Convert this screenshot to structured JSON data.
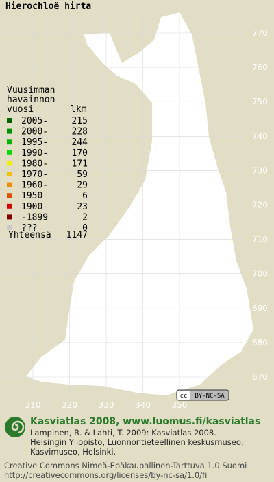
{
  "title": "Hierochloë hirta",
  "legend": {
    "heading": [
      "Vuusimman",
      "havainnon",
      "vuosi"
    ],
    "count_heading": "lkm",
    "rows": [
      {
        "label": "2005-",
        "count": 215,
        "color": "#006400"
      },
      {
        "label": "2000-",
        "count": 228,
        "color": "#009000"
      },
      {
        "label": "1995-",
        "count": 244,
        "color": "#00b400"
      },
      {
        "label": "1990-",
        "count": 170,
        "color": "#00dc00"
      },
      {
        "label": "1980-",
        "count": 171,
        "color": "#f0f000"
      },
      {
        "label": "1970-",
        "count": 59,
        "color": "#f0c000"
      },
      {
        "label": "1960-",
        "count": 29,
        "color": "#f08c00"
      },
      {
        "label": "1950-",
        "count": 6,
        "color": "#e05000"
      },
      {
        "label": "1900-",
        "count": 23,
        "color": "#d00000"
      },
      {
        "label": "-1899",
        "count": 2,
        "color": "#800000"
      },
      {
        "label": "???",
        "count": 0,
        "color": "#c8c8c8"
      }
    ],
    "total_label": "Yhteensä",
    "total": 1147
  },
  "grid": {
    "north": [
      770,
      760,
      750,
      740,
      730,
      720,
      710,
      700,
      690,
      680,
      670
    ],
    "east": [
      310,
      320,
      330,
      340,
      350
    ]
  },
  "badge": [
    "cc",
    "BY-NC-SA"
  ],
  "footer": {
    "brand": "Kasviatlas 2008, www.luomus.fi/kasviatlas",
    "citation": [
      "Lampinen, R. & Lahti, T. 2009: Kasviatlas 2008. –",
      "Helsingin Yliopisto, Luonnontieteellinen keskusmuseo,",
      "Kasvimuseo, Helsinki."
    ],
    "license": [
      "Creative Commons Nimeä-Epäkaupallinen-Tarttuva 1.0 Suomi",
      "http://creativecommons.org/licenses/by-nc-sa/1.0/fi"
    ]
  }
}
